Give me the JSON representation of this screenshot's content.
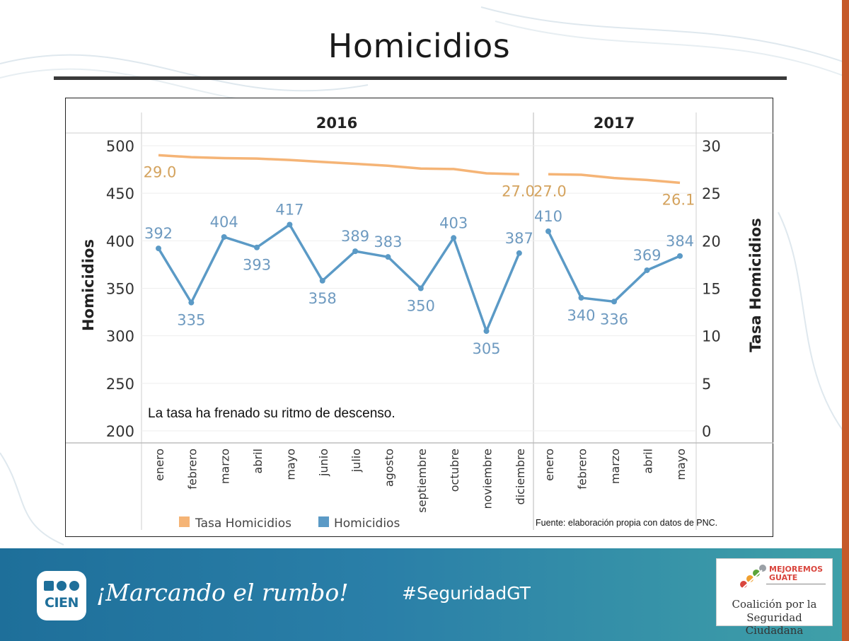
{
  "slide": {
    "title": "Homicidios",
    "note": "La tasa ha frenado su ritmo de descenso.",
    "source": "Fuente: elaboración propia con datos de PNC."
  },
  "footer": {
    "slogan": "¡Marcando el rumbo!",
    "hashtag": "#SeguridadGT",
    "logo_left": "CIEN",
    "partner_brand_line1": "MEJOREMOS",
    "partner_brand_line2": "GUATE",
    "partner_line1": "Coalición por la",
    "partner_line2": "Seguridad Ciudadana"
  },
  "colors": {
    "tasa": "#f5b476",
    "homicidios": "#5b9ac6",
    "tasa_label": "#d4a35e",
    "homicidios_label": "#6e9ac0"
  },
  "chart_data": {
    "type": "line",
    "title": "Homicidios",
    "panels": [
      {
        "year": "2016",
        "months": [
          "enero",
          "febrero",
          "marzo",
          "abril",
          "mayo",
          "junio",
          "julio",
          "agosto",
          "septiembre",
          "octubre",
          "noviembre",
          "diciembre"
        ]
      },
      {
        "year": "2017",
        "months": [
          "enero",
          "febrero",
          "marzo",
          "abril",
          "mayo"
        ]
      }
    ],
    "series": [
      {
        "name": "Tasa Homicidios",
        "axis": "right",
        "values": [
          [
            29.0,
            28.8,
            28.7,
            28.65,
            28.5,
            28.3,
            28.1,
            27.9,
            27.6,
            27.55,
            27.1,
            27.0
          ],
          [
            27.0,
            26.95,
            26.6,
            26.4,
            26.1
          ]
        ],
        "labels": [
          {
            "panel": 0,
            "index": 0,
            "text": "29.0"
          },
          {
            "panel": 0,
            "index": 11,
            "text": "27.0"
          },
          {
            "panel": 1,
            "index": 0,
            "text": "27.0"
          },
          {
            "panel": 1,
            "index": 4,
            "text": "26.1"
          }
        ]
      },
      {
        "name": "Homicidios",
        "axis": "left",
        "values": [
          [
            392,
            335,
            404,
            393,
            417,
            358,
            389,
            383,
            350,
            403,
            305,
            387
          ],
          [
            410,
            340,
            336,
            369,
            384
          ]
        ],
        "labels": [
          [
            "392",
            "335",
            "404",
            "393",
            "417",
            "358",
            "389",
            "383",
            "350",
            "403",
            "305",
            "387"
          ],
          [
            "410",
            "340",
            "336",
            "369",
            "384"
          ]
        ]
      }
    ],
    "ylabel": "Homicidios",
    "ylabel_right": "Tasa Homicidios",
    "ylim": [
      200,
      500
    ],
    "ylim_right": [
      0,
      30
    ],
    "yticks": [
      "200",
      "250",
      "300",
      "350",
      "400",
      "450",
      "500"
    ],
    "yticks_right": [
      "0",
      "5",
      "10",
      "15",
      "20",
      "25",
      "30"
    ],
    "legend": [
      "Tasa Homicidios",
      "Homicidios"
    ],
    "legend_position": "bottom-left"
  }
}
